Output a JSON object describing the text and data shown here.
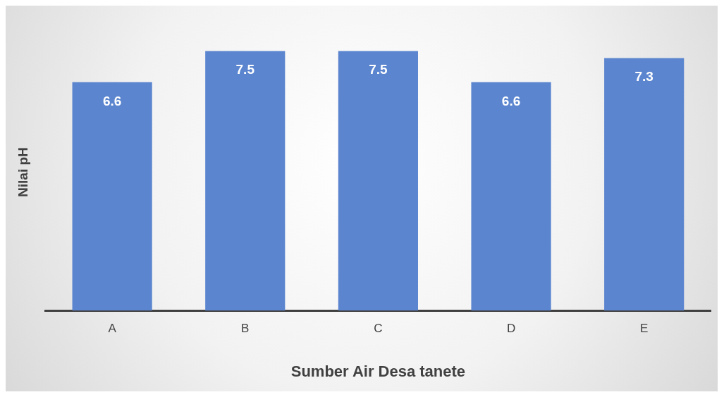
{
  "chart_data": {
    "type": "bar",
    "xlabel": "Sumber Air Desa tanete",
    "ylabel": "Nilai pH",
    "categories": [
      "A",
      "B",
      "C",
      "D",
      "E"
    ],
    "values": [
      6.6,
      7.5,
      7.5,
      6.6,
      7.3
    ],
    "color": "#5b85cf",
    "data_labels": true,
    "grid": false,
    "legend": false
  }
}
